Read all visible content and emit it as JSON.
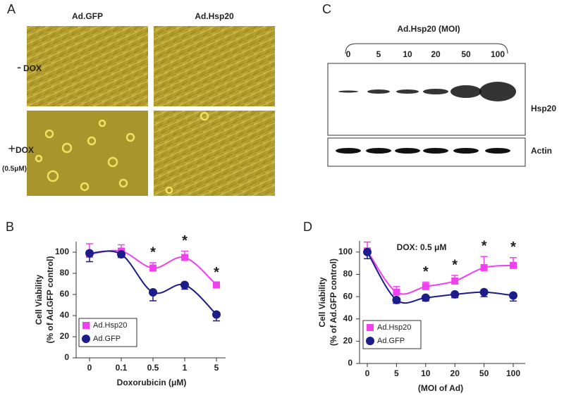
{
  "panel_a": {
    "label": "A",
    "columns": [
      "Ad.GFP",
      "Ad.Hsp20"
    ],
    "rows": [
      {
        "sign": "-",
        "label": "DOX"
      },
      {
        "sign": "+",
        "label": "DOX",
        "sublabel": "(0.5μM)"
      }
    ]
  },
  "panel_c": {
    "label": "C",
    "title": "Ad.Hsp20 (MOI)",
    "lanes": [
      "0",
      "5",
      "10",
      "20",
      "50",
      "100"
    ],
    "blots": [
      "Hsp20",
      "Actin"
    ]
  },
  "chart_data": [
    {
      "type": "line",
      "panel_label": "B",
      "xlabel": "Doxorubicin (μM)",
      "ylabel": [
        "Cell Viability",
        "(% of Ad.GFP control)"
      ],
      "categories": [
        "0",
        "0.1",
        "0.5",
        "1",
        "5"
      ],
      "ylim": [
        0,
        110
      ],
      "yticks": [
        0,
        20,
        40,
        60,
        80,
        100
      ],
      "significance": [
        null,
        null,
        "*",
        "*",
        "*"
      ],
      "series": [
        {
          "name": "Ad.Hsp20",
          "color": "#f040f0",
          "marker": "square",
          "error_side": "up",
          "values": [
            98,
            101,
            85,
            95,
            69
          ],
          "errors": [
            10,
            6,
            5,
            6,
            2
          ]
        },
        {
          "name": "Ad.GFP",
          "color": "#1c1c8a",
          "marker": "circle",
          "error_side": "down",
          "values": [
            99,
            98,
            62,
            69,
            41
          ],
          "errors": [
            8,
            3,
            8,
            4,
            6
          ]
        }
      ]
    },
    {
      "type": "line",
      "panel_label": "D",
      "title": "DOX: 0.5 μM",
      "xlabel": "(MOI of Ad)",
      "ylabel": [
        "Cell Viability",
        "(% of Ad.GFP control)"
      ],
      "categories": [
        "0",
        "5",
        "10",
        "20",
        "50",
        "100"
      ],
      "ylim": [
        0,
        110
      ],
      "yticks": [
        0,
        20,
        40,
        60,
        80,
        100
      ],
      "significance": [
        null,
        null,
        "*",
        "*",
        "*",
        "*"
      ],
      "series": [
        {
          "name": "Ad.Hsp20",
          "color": "#f040f0",
          "marker": "square",
          "error_side": "up",
          "values": [
            101,
            64,
            69,
            74,
            86,
            88
          ],
          "errors": [
            8,
            5,
            4,
            5,
            10,
            7
          ]
        },
        {
          "name": "Ad.GFP",
          "color": "#1c1c8a",
          "marker": "circle",
          "error_side": "down",
          "values": [
            100,
            57,
            59,
            62,
            64,
            61
          ],
          "errors": [
            6,
            3,
            3,
            3,
            4,
            5
          ]
        }
      ]
    }
  ]
}
